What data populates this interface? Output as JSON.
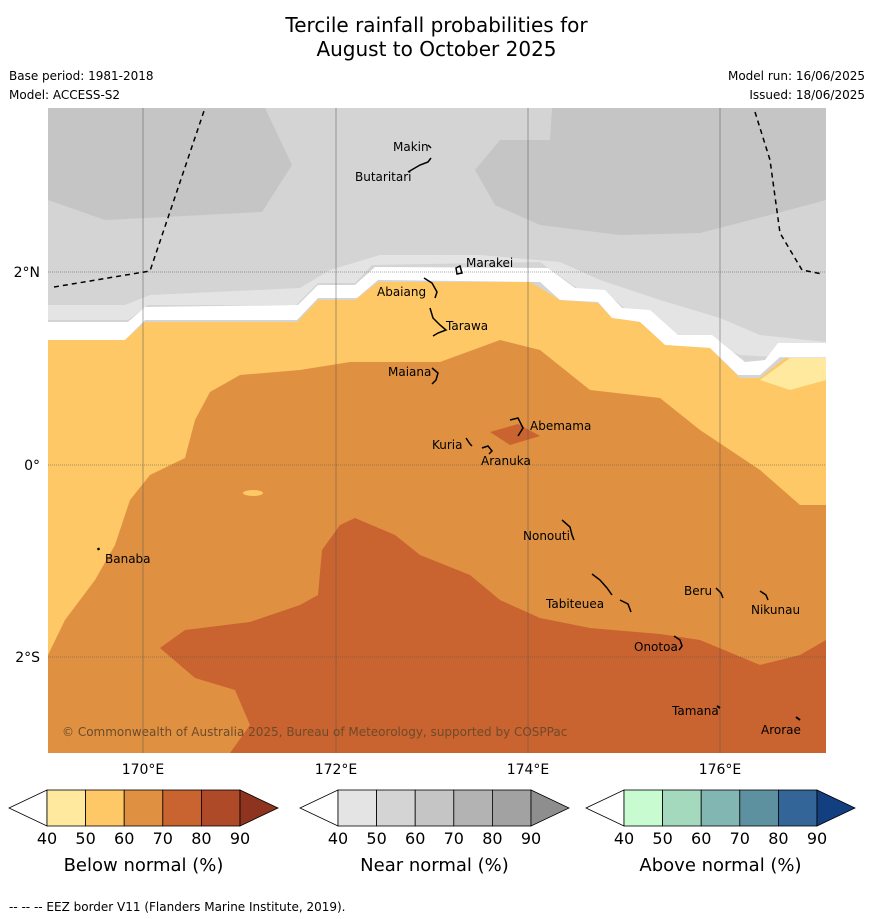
{
  "title_line1": "Tercile rainfall probabilities for",
  "title_line2": "August to October 2025",
  "meta": {
    "base_period": "Base period: 1981-2018",
    "model": "Model: ACCESS-S2",
    "model_run": "Model run: 16/06/2025",
    "issued": "Issued: 18/06/2025"
  },
  "map": {
    "lat_labels": [
      "2°N",
      "0°",
      "2°S"
    ],
    "lon_labels": [
      "170°E",
      "172°E",
      "174°E",
      "176°E"
    ],
    "copyright": "© Commonwealth of Australia 2025, Bureau of Meteorology, supported by COSPPac",
    "places": {
      "makin": "Makin",
      "butaritari": "Butaritari",
      "marakei": "Marakei",
      "abaiang": "Abaiang",
      "tarawa": "Tarawa",
      "maiana": "Maiana",
      "abemama": "Abemama",
      "kuria": "Kuria",
      "aranuka": "Aranuka",
      "banaba": "Banaba",
      "nonouti": "Nonouti",
      "tabiteuea": "Tabiteuea",
      "beru": "Beru",
      "nikunau": "Nikunau",
      "onotoa": "Onotoa",
      "tamana": "Tamana",
      "arorae": "Arorae"
    }
  },
  "colorbars": [
    {
      "title": "Below normal (%)",
      "ticks": [
        "40",
        "50",
        "60",
        "70",
        "80",
        "90"
      ],
      "colors": [
        "#ffffff",
        "#fee99e",
        "#fdc865",
        "#df9141",
        "#c9632f",
        "#ae4a27",
        "#8e3320"
      ]
    },
    {
      "title": "Near normal (%)",
      "ticks": [
        "40",
        "50",
        "60",
        "70",
        "80",
        "90"
      ],
      "colors": [
        "#ffffff",
        "#e4e4e4",
        "#d4d4d4",
        "#c5c5c5",
        "#b3b3b3",
        "#a2a2a2",
        "#8e8e8e"
      ]
    },
    {
      "title": "Above normal (%)",
      "ticks": [
        "40",
        "50",
        "60",
        "70",
        "80",
        "90"
      ],
      "colors": [
        "#ffffff",
        "#c8fbd0",
        "#a4d9bd",
        "#82b6b2",
        "#5e91a0",
        "#346598",
        "#123f7f"
      ]
    }
  ],
  "footnote": "--  --  -- EEZ border V11 (Flanders Marine Institute, 2019)."
}
